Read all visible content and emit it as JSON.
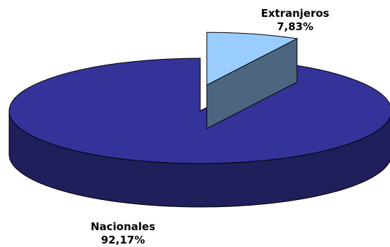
{
  "chart_data": {
    "type": "pie",
    "style": "3d-exploded",
    "categories": [
      "Nacionales",
      "Extranjeros"
    ],
    "values": [
      92.17,
      7.83
    ],
    "value_labels": [
      "92,17%",
      "7,83%"
    ],
    "colors": {
      "Nacionales": {
        "top": "#333399",
        "side": "#1f1f5c"
      },
      "Extranjeros": {
        "top": "#99ccff",
        "side": "#4d6680"
      }
    },
    "exploded": "Extranjeros",
    "legend": "none"
  }
}
